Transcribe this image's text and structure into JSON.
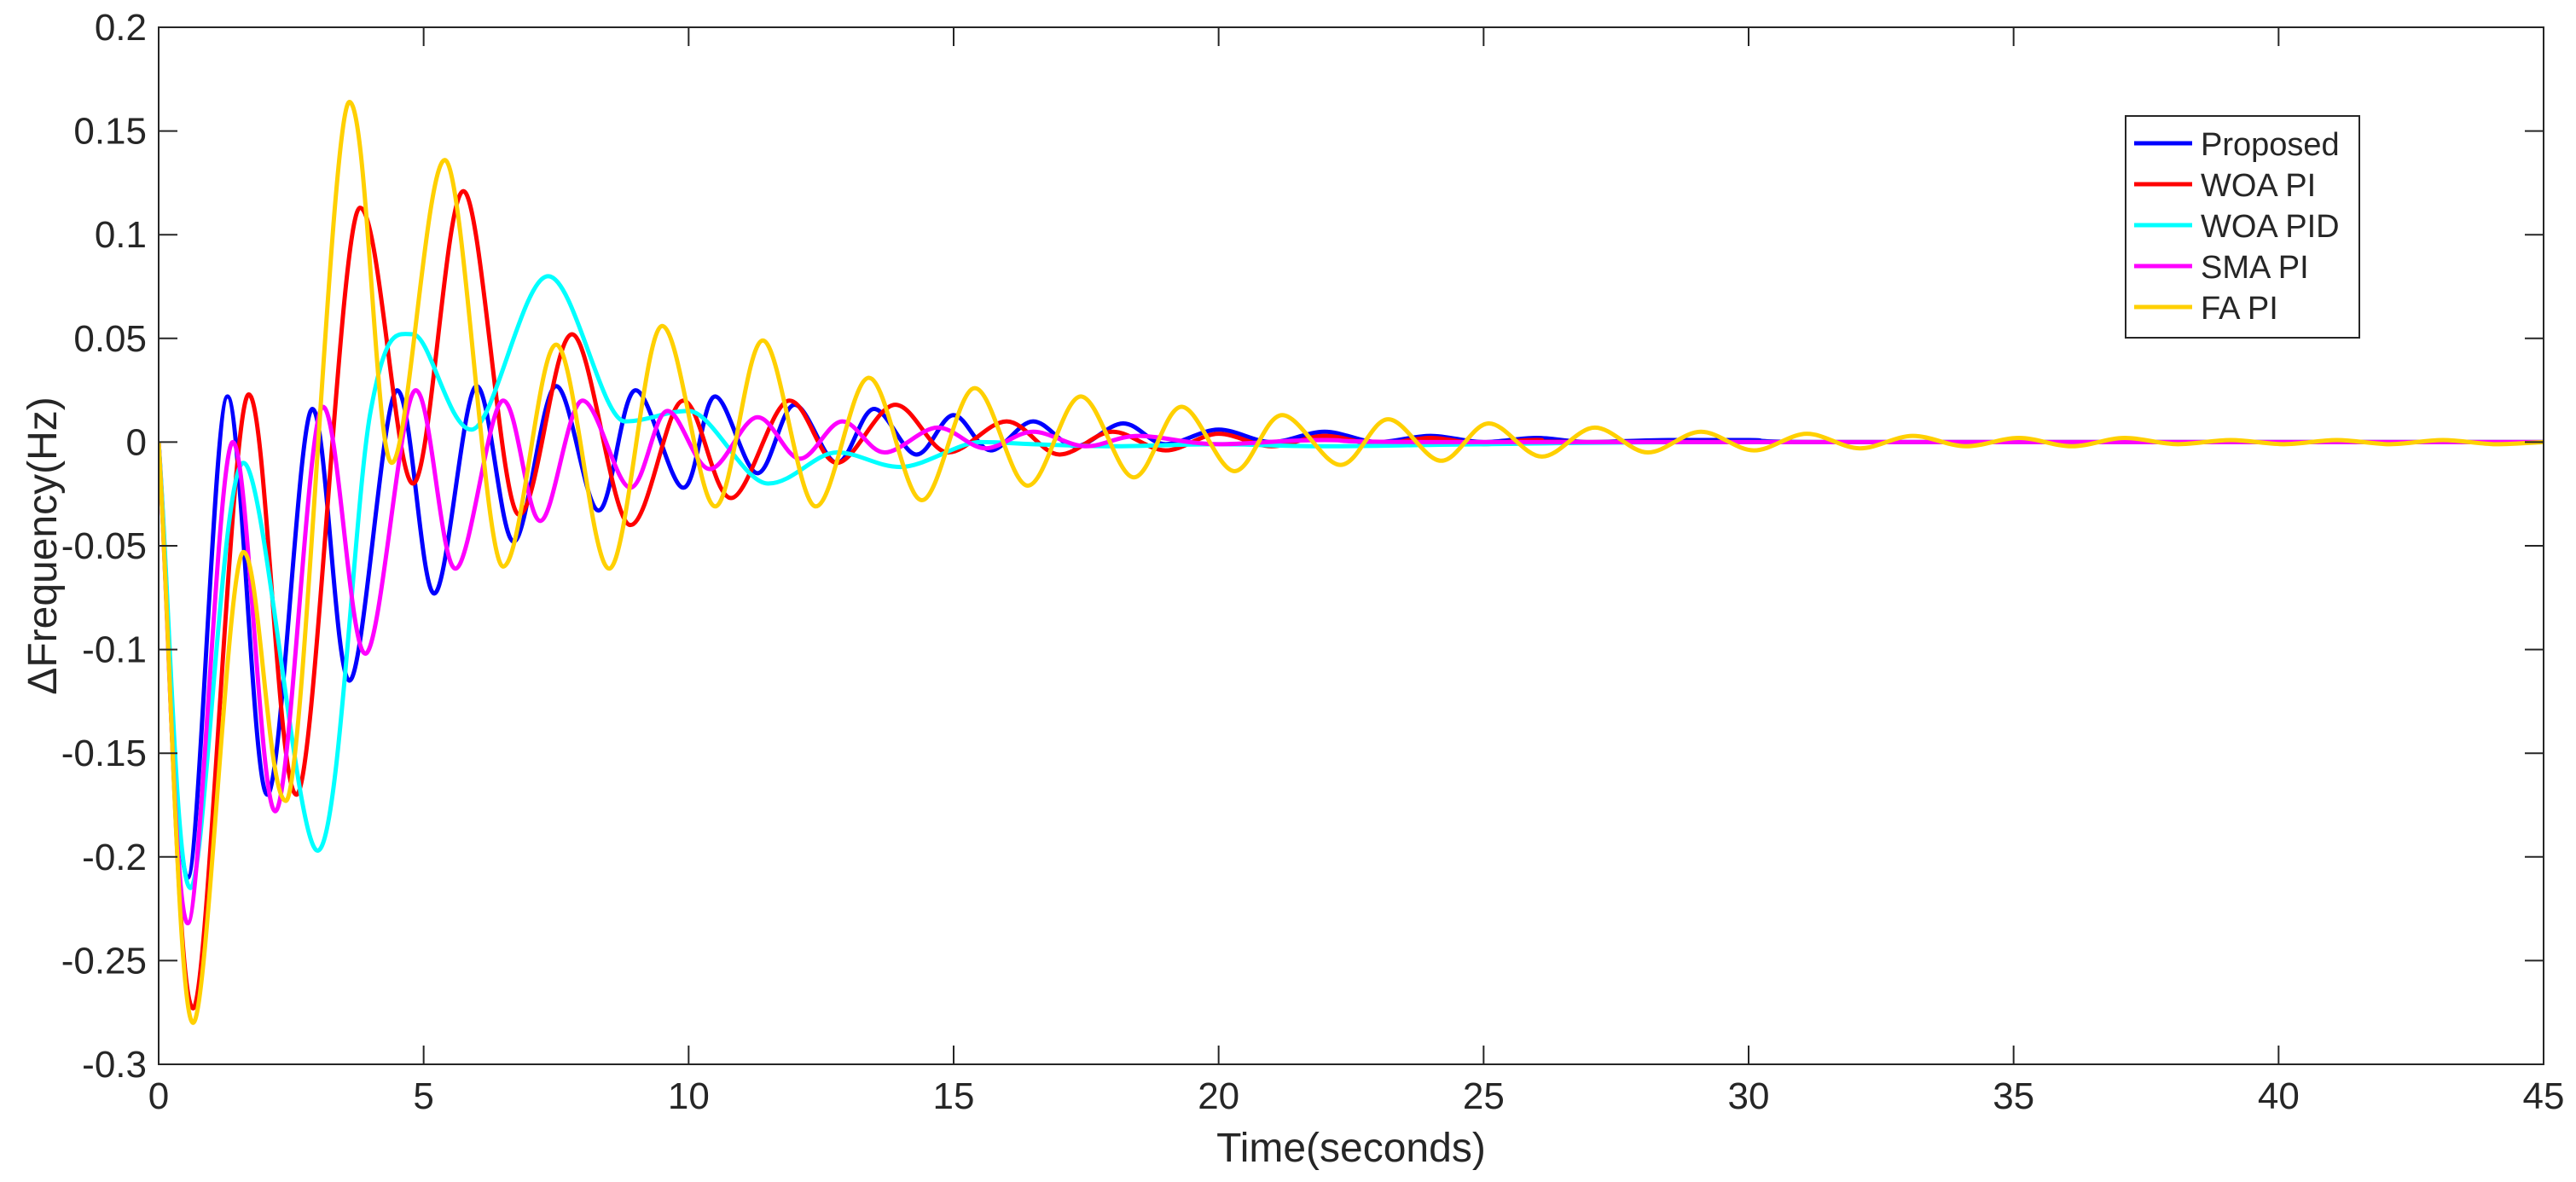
{
  "chart_data": {
    "type": "line",
    "title": "",
    "xlabel": "Time(seconds)",
    "ylabel": "ΔFrequency(Hz)",
    "xlim": [
      0,
      45
    ],
    "ylim": [
      -0.3,
      0.2
    ],
    "xticks": [
      0,
      5,
      10,
      15,
      20,
      25,
      30,
      35,
      40,
      45
    ],
    "yticks": [
      -0.3,
      -0.25,
      -0.2,
      -0.15,
      -0.1,
      -0.05,
      0,
      0.05,
      0.1,
      0.15,
      0.2
    ],
    "xtick_labels": [
      "0",
      "5",
      "10",
      "15",
      "20",
      "25",
      "30",
      "35",
      "40",
      "45"
    ],
    "ytick_labels": [
      "-0.3",
      "-0.25",
      "-0.2",
      "-0.15",
      "-0.1",
      "-0.05",
      "0",
      "0.05",
      "0.1",
      "0.15",
      "0.2"
    ],
    "grid": false,
    "legend_position": "top-right",
    "series": [
      {
        "name": "Proposed",
        "color": "#0000ff",
        "points": [
          [
            0,
            0
          ],
          [
            0.55,
            -0.21
          ],
          [
            1.3,
            0.022
          ],
          [
            2.05,
            -0.17
          ],
          [
            2.9,
            0.016
          ],
          [
            3.6,
            -0.115
          ],
          [
            4.5,
            0.025
          ],
          [
            5.2,
            -0.073
          ],
          [
            6.0,
            0.027
          ],
          [
            6.7,
            -0.048
          ],
          [
            7.5,
            0.027
          ],
          [
            8.3,
            -0.033
          ],
          [
            9.0,
            0.025
          ],
          [
            9.9,
            -0.022
          ],
          [
            10.5,
            0.022
          ],
          [
            11.3,
            -0.015
          ],
          [
            12.0,
            0.018
          ],
          [
            12.8,
            -0.01
          ],
          [
            13.5,
            0.016
          ],
          [
            14.3,
            -0.006
          ],
          [
            15.0,
            0.013
          ],
          [
            15.7,
            -0.004
          ],
          [
            16.5,
            0.01
          ],
          [
            17.3,
            -0.002
          ],
          [
            18.2,
            0.009
          ],
          [
            19.0,
            -0.001
          ],
          [
            20.0,
            0.006
          ],
          [
            21.0,
            0.0
          ],
          [
            22.0,
            0.005
          ],
          [
            23.0,
            0.0
          ],
          [
            24.0,
            0.003
          ],
          [
            25.0,
            0.0
          ],
          [
            26.0,
            0.002
          ],
          [
            27.0,
            0.0
          ],
          [
            28.5,
            0.001
          ],
          [
            30.0,
            0.001
          ],
          [
            32.0,
            0.0
          ],
          [
            45.0,
            0.0
          ]
        ]
      },
      {
        "name": "WOA PI",
        "color": "#ff0000",
        "points": [
          [
            0,
            0
          ],
          [
            0.65,
            -0.273
          ],
          [
            1.7,
            0.023
          ],
          [
            2.6,
            -0.17
          ],
          [
            3.8,
            0.113
          ],
          [
            4.8,
            -0.02
          ],
          [
            5.75,
            0.121
          ],
          [
            6.8,
            -0.035
          ],
          [
            7.8,
            0.052
          ],
          [
            8.9,
            -0.04
          ],
          [
            9.9,
            0.02
          ],
          [
            10.8,
            -0.027
          ],
          [
            11.9,
            0.02
          ],
          [
            12.8,
            -0.01
          ],
          [
            13.9,
            0.018
          ],
          [
            14.9,
            -0.005
          ],
          [
            16.0,
            0.01
          ],
          [
            17.0,
            -0.006
          ],
          [
            18.0,
            0.005
          ],
          [
            19.0,
            -0.004
          ],
          [
            20.0,
            0.004
          ],
          [
            21.0,
            -0.002
          ],
          [
            22.0,
            0.003
          ],
          [
            23.0,
            -0.001
          ],
          [
            24.0,
            0.002
          ],
          [
            25.0,
            -0.001
          ],
          [
            26.0,
            0.001
          ],
          [
            28.0,
            0.0
          ],
          [
            45.0,
            0.0
          ]
        ]
      },
      {
        "name": "WOA PID",
        "color": "#00ffff",
        "points": [
          [
            0,
            0
          ],
          [
            0.6,
            -0.215
          ],
          [
            1.6,
            -0.01
          ],
          [
            3.0,
            -0.197
          ],
          [
            4.0,
            0.015
          ],
          [
            4.8,
            0.052
          ],
          [
            5.9,
            0.006
          ],
          [
            7.35,
            0.08
          ],
          [
            8.8,
            0.01
          ],
          [
            10.0,
            0.015
          ],
          [
            11.5,
            -0.02
          ],
          [
            12.8,
            -0.005
          ],
          [
            14.0,
            -0.012
          ],
          [
            15.5,
            0.0
          ],
          [
            16.5,
            -0.001
          ],
          [
            18.0,
            -0.002
          ],
          [
            20.0,
            -0.001
          ],
          [
            22.0,
            -0.002
          ],
          [
            25.0,
            -0.001
          ],
          [
            30.0,
            0.0
          ],
          [
            45.0,
            0.0
          ]
        ]
      },
      {
        "name": "SMA PI",
        "color": "#ff00ff",
        "points": [
          [
            0,
            0
          ],
          [
            0.55,
            -0.232
          ],
          [
            1.4,
            0.0
          ],
          [
            2.2,
            -0.178
          ],
          [
            3.1,
            0.017
          ],
          [
            3.9,
            -0.102
          ],
          [
            4.85,
            0.025
          ],
          [
            5.6,
            -0.061
          ],
          [
            6.5,
            0.02
          ],
          [
            7.2,
            -0.038
          ],
          [
            8.0,
            0.02
          ],
          [
            8.9,
            -0.022
          ],
          [
            9.6,
            0.015
          ],
          [
            10.4,
            -0.013
          ],
          [
            11.3,
            0.012
          ],
          [
            12.1,
            -0.008
          ],
          [
            12.9,
            0.01
          ],
          [
            13.7,
            -0.005
          ],
          [
            14.7,
            0.007
          ],
          [
            15.6,
            -0.003
          ],
          [
            16.5,
            0.005
          ],
          [
            17.5,
            -0.002
          ],
          [
            18.5,
            0.003
          ],
          [
            20.0,
            -0.001
          ],
          [
            22.0,
            0.001
          ],
          [
            25.0,
            0.0
          ],
          [
            45.0,
            0.0
          ]
        ]
      },
      {
        "name": "FA PI",
        "color": "#ffd000",
        "points": [
          [
            0,
            0
          ],
          [
            0.65,
            -0.28
          ],
          [
            1.6,
            -0.053
          ],
          [
            2.4,
            -0.173
          ],
          [
            3.6,
            0.164
          ],
          [
            4.4,
            -0.01
          ],
          [
            5.4,
            0.136
          ],
          [
            6.5,
            -0.06
          ],
          [
            7.5,
            0.047
          ],
          [
            8.5,
            -0.061
          ],
          [
            9.5,
            0.056
          ],
          [
            10.5,
            -0.031
          ],
          [
            11.4,
            0.049
          ],
          [
            12.4,
            -0.031
          ],
          [
            13.4,
            0.031
          ],
          [
            14.4,
            -0.028
          ],
          [
            15.4,
            0.026
          ],
          [
            16.4,
            -0.021
          ],
          [
            17.4,
            0.022
          ],
          [
            18.4,
            -0.017
          ],
          [
            19.3,
            0.017
          ],
          [
            20.3,
            -0.014
          ],
          [
            21.2,
            0.013
          ],
          [
            22.3,
            -0.011
          ],
          [
            23.2,
            0.011
          ],
          [
            24.2,
            -0.009
          ],
          [
            25.1,
            0.009
          ],
          [
            26.1,
            -0.007
          ],
          [
            27.1,
            0.007
          ],
          [
            28.1,
            -0.005
          ],
          [
            29.1,
            0.005
          ],
          [
            30.1,
            -0.004
          ],
          [
            31.1,
            0.004
          ],
          [
            32.1,
            -0.003
          ],
          [
            33.1,
            0.003
          ],
          [
            34.1,
            -0.002
          ],
          [
            35.1,
            0.002
          ],
          [
            36.1,
            -0.002
          ],
          [
            37.1,
            0.002
          ],
          [
            38.1,
            -0.001
          ],
          [
            39.1,
            0.001
          ],
          [
            40.1,
            -0.001
          ],
          [
            41.1,
            0.001
          ],
          [
            42.1,
            -0.001
          ],
          [
            43.1,
            0.001
          ],
          [
            44.1,
            -0.001
          ],
          [
            45.0,
            0.0
          ]
        ]
      }
    ]
  }
}
